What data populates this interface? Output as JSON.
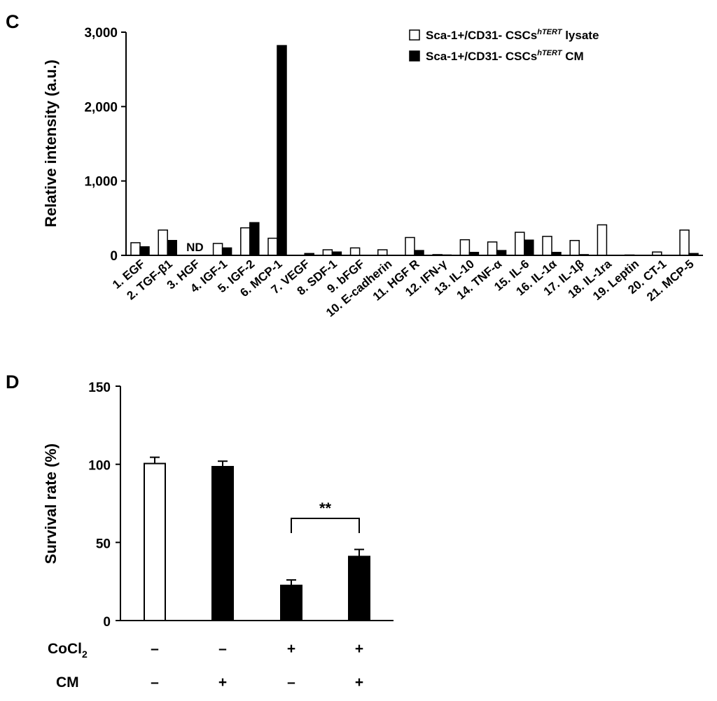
{
  "chart_data": [
    {
      "panel": "C",
      "type": "bar",
      "ylabel": "Relative intensity (a.u.)",
      "ylim": [
        0,
        3000
      ],
      "yticks": [
        "3,000",
        "2,000",
        "1,000",
        "0"
      ],
      "ytick_values": [
        3000,
        2000,
        1000,
        0
      ],
      "categories": [
        "1. EGF",
        "2. TGF-β1",
        "3. HGF",
        "4. IGF-1",
        "5. IGF-2",
        "6. MCP-1",
        "7. VEGF",
        "8. SDF-1",
        "9. bFGF",
        "10. E-cadherin",
        "11. HGF R",
        "12. IFN-γ",
        "13. IL-10",
        "14. TNF-α",
        "15. IL-6",
        "16. IL-1α",
        "17. IL-1β",
        "18. IL-1ra",
        "19. Leptin",
        "20. CT-1",
        "21. MCP-5"
      ],
      "series": [
        {
          "name": "Sca-1+/CD31- CSCs lysate",
          "name_parts": {
            "pre": "Sca-1+/CD31- CSCs",
            "sup": "hTERT",
            "post": " lysate"
          },
          "fill": "#ffffff",
          "values": [
            170,
            340,
            0,
            160,
            370,
            230,
            0,
            75,
            100,
            75,
            240,
            10,
            210,
            180,
            310,
            255,
            200,
            410,
            5,
            45,
            340
          ]
        },
        {
          "name": "Sca-1+/CD31- CSCs CM",
          "name_parts": {
            "pre": "Sca-1+/CD31- CSCs",
            "sup": "hTERT",
            "post": " CM"
          },
          "fill": "#000000",
          "values": [
            115,
            200,
            0,
            100,
            440,
            2820,
            25,
            45,
            0,
            0,
            65,
            5,
            40,
            65,
            205,
            40,
            10,
            0,
            0,
            0,
            25
          ]
        }
      ],
      "annotations": [
        {
          "category": "3. HGF",
          "text": "ND"
        }
      ],
      "legend_position": "top-right"
    },
    {
      "panel": "D",
      "type": "bar",
      "ylabel": "Survival rate (%)",
      "ylim": [
        0,
        150
      ],
      "yticks": [
        "150",
        "100",
        "50",
        "0"
      ],
      "ytick_values": [
        150,
        100,
        50,
        0
      ],
      "values": [
        100.5,
        98.5,
        22.5,
        41
      ],
      "errors": [
        4,
        3.5,
        3.5,
        4.5
      ],
      "fills": [
        "#ffffff",
        "#000000",
        "#000000",
        "#000000"
      ],
      "conditions": [
        {
          "label": "CoCl",
          "sub": "2",
          "marks": [
            "–",
            "–",
            "+",
            "+"
          ]
        },
        {
          "label": "CM",
          "sub": "",
          "marks": [
            "–",
            "+",
            "–",
            "+"
          ]
        }
      ],
      "significance": {
        "between": [
          3,
          4
        ],
        "text": "**"
      }
    }
  ]
}
